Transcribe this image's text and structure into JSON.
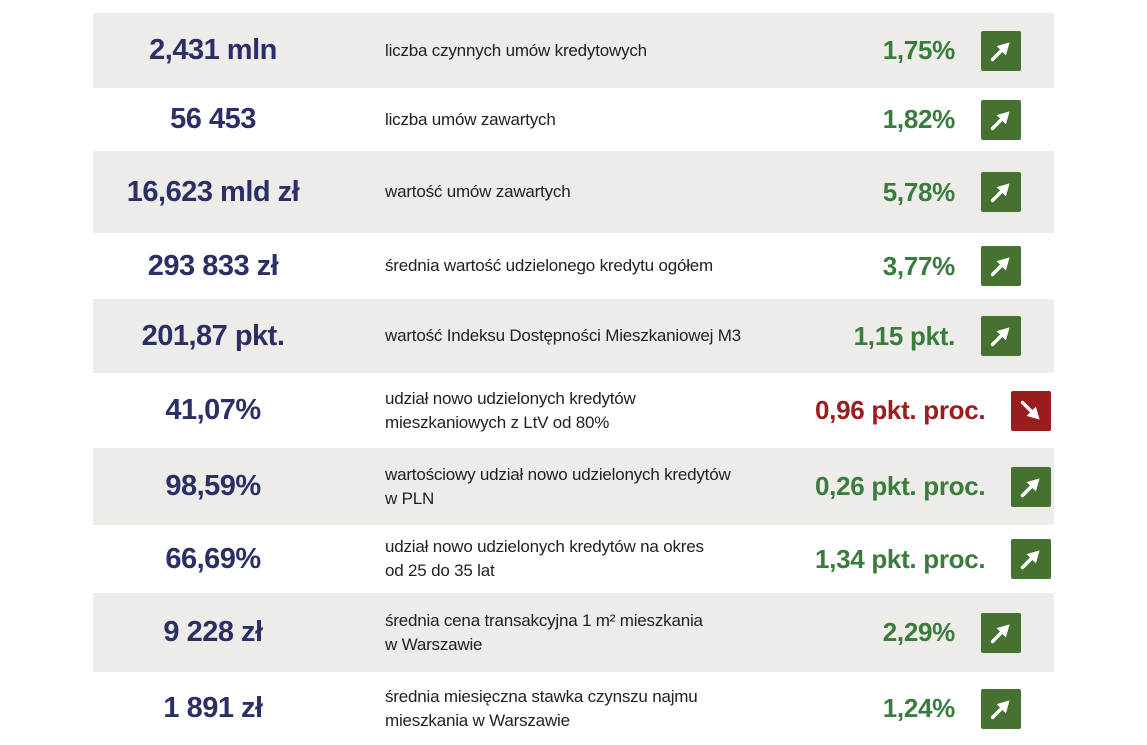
{
  "colors": {
    "positive_text": "#3a7b3e",
    "positive_box": "#467231",
    "negative_text": "#9d1c20",
    "negative_box": "#9b1c1e",
    "value_text": "#2b2f66",
    "description_text": "#232021",
    "row_alt_background": "#edece9",
    "arrow": "#ffffff"
  },
  "table": {
    "rows": [
      {
        "value": "2,431 mln",
        "description_lines": [
          "liczba czynnych umów kredytowych"
        ],
        "change": "1,75%",
        "trend": "up"
      },
      {
        "value": "56 453",
        "description_lines": [
          "liczba umów zawartych"
        ],
        "change": "1,82%",
        "trend": "up"
      },
      {
        "value": "16,623 mld zł",
        "description_lines": [
          "wartość umów zawartych"
        ],
        "change": "5,78%",
        "trend": "up"
      },
      {
        "value": "293 833 zł",
        "description_lines": [
          "średnia wartość udzielonego kredytu ogółem"
        ],
        "change": "3,77%",
        "trend": "up"
      },
      {
        "value": "201,87 pkt.",
        "description_lines": [
          "wartość Indeksu Dostępności Mieszkaniowej M3"
        ],
        "change": "1,15 pkt.",
        "trend": "up"
      },
      {
        "value": "41,07%",
        "description_lines": [
          "udział nowo udzielonych kredytów",
          "mieszkaniowych z LtV od 80%"
        ],
        "change": "0,96 pkt. proc.",
        "trend": "down"
      },
      {
        "value": "98,59%",
        "description_lines": [
          "wartościowy udział nowo udzielonych kredytów",
          "w PLN"
        ],
        "change": "0,26 pkt. proc.",
        "trend": "up"
      },
      {
        "value": "66,69%",
        "description_lines": [
          "udział nowo udzielonych kredytów na okres",
          "od 25 do 35 lat"
        ],
        "change": "1,34 pkt. proc.",
        "trend": "up"
      },
      {
        "value": "9 228 zł",
        "description_lines": [
          "średnia cena transakcyjna 1 m² mieszkania",
          "w Warszawie"
        ],
        "change": "2,29%",
        "trend": "up"
      },
      {
        "value": "1 891 zł",
        "description_lines": [
          "średnia miesięczna stawka czynszu najmu",
          "mieszkania w Warszawie"
        ],
        "change": "1,24%",
        "trend": "up"
      }
    ]
  }
}
